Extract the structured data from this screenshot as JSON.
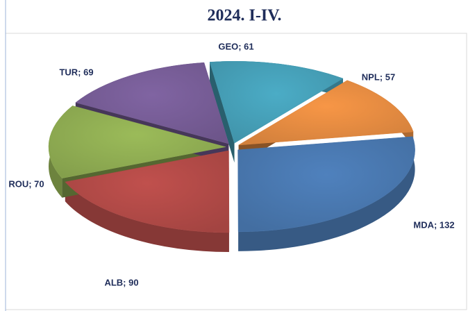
{
  "chart_data": {
    "type": "pie",
    "title": "2024. I-IV.",
    "values": [
      61,
      57,
      132,
      90,
      70,
      69
    ],
    "value_labels": [
      "GEO; 61",
      "NPL; 57",
      "MDA; 132",
      "ALB; 90",
      "ROU; 70",
      "TUR; 69"
    ],
    "colors": [
      "#4bacc6",
      "#f79646",
      "#4f81bd",
      "#c0504d",
      "#9bbb59",
      "#8064a2"
    ]
  }
}
